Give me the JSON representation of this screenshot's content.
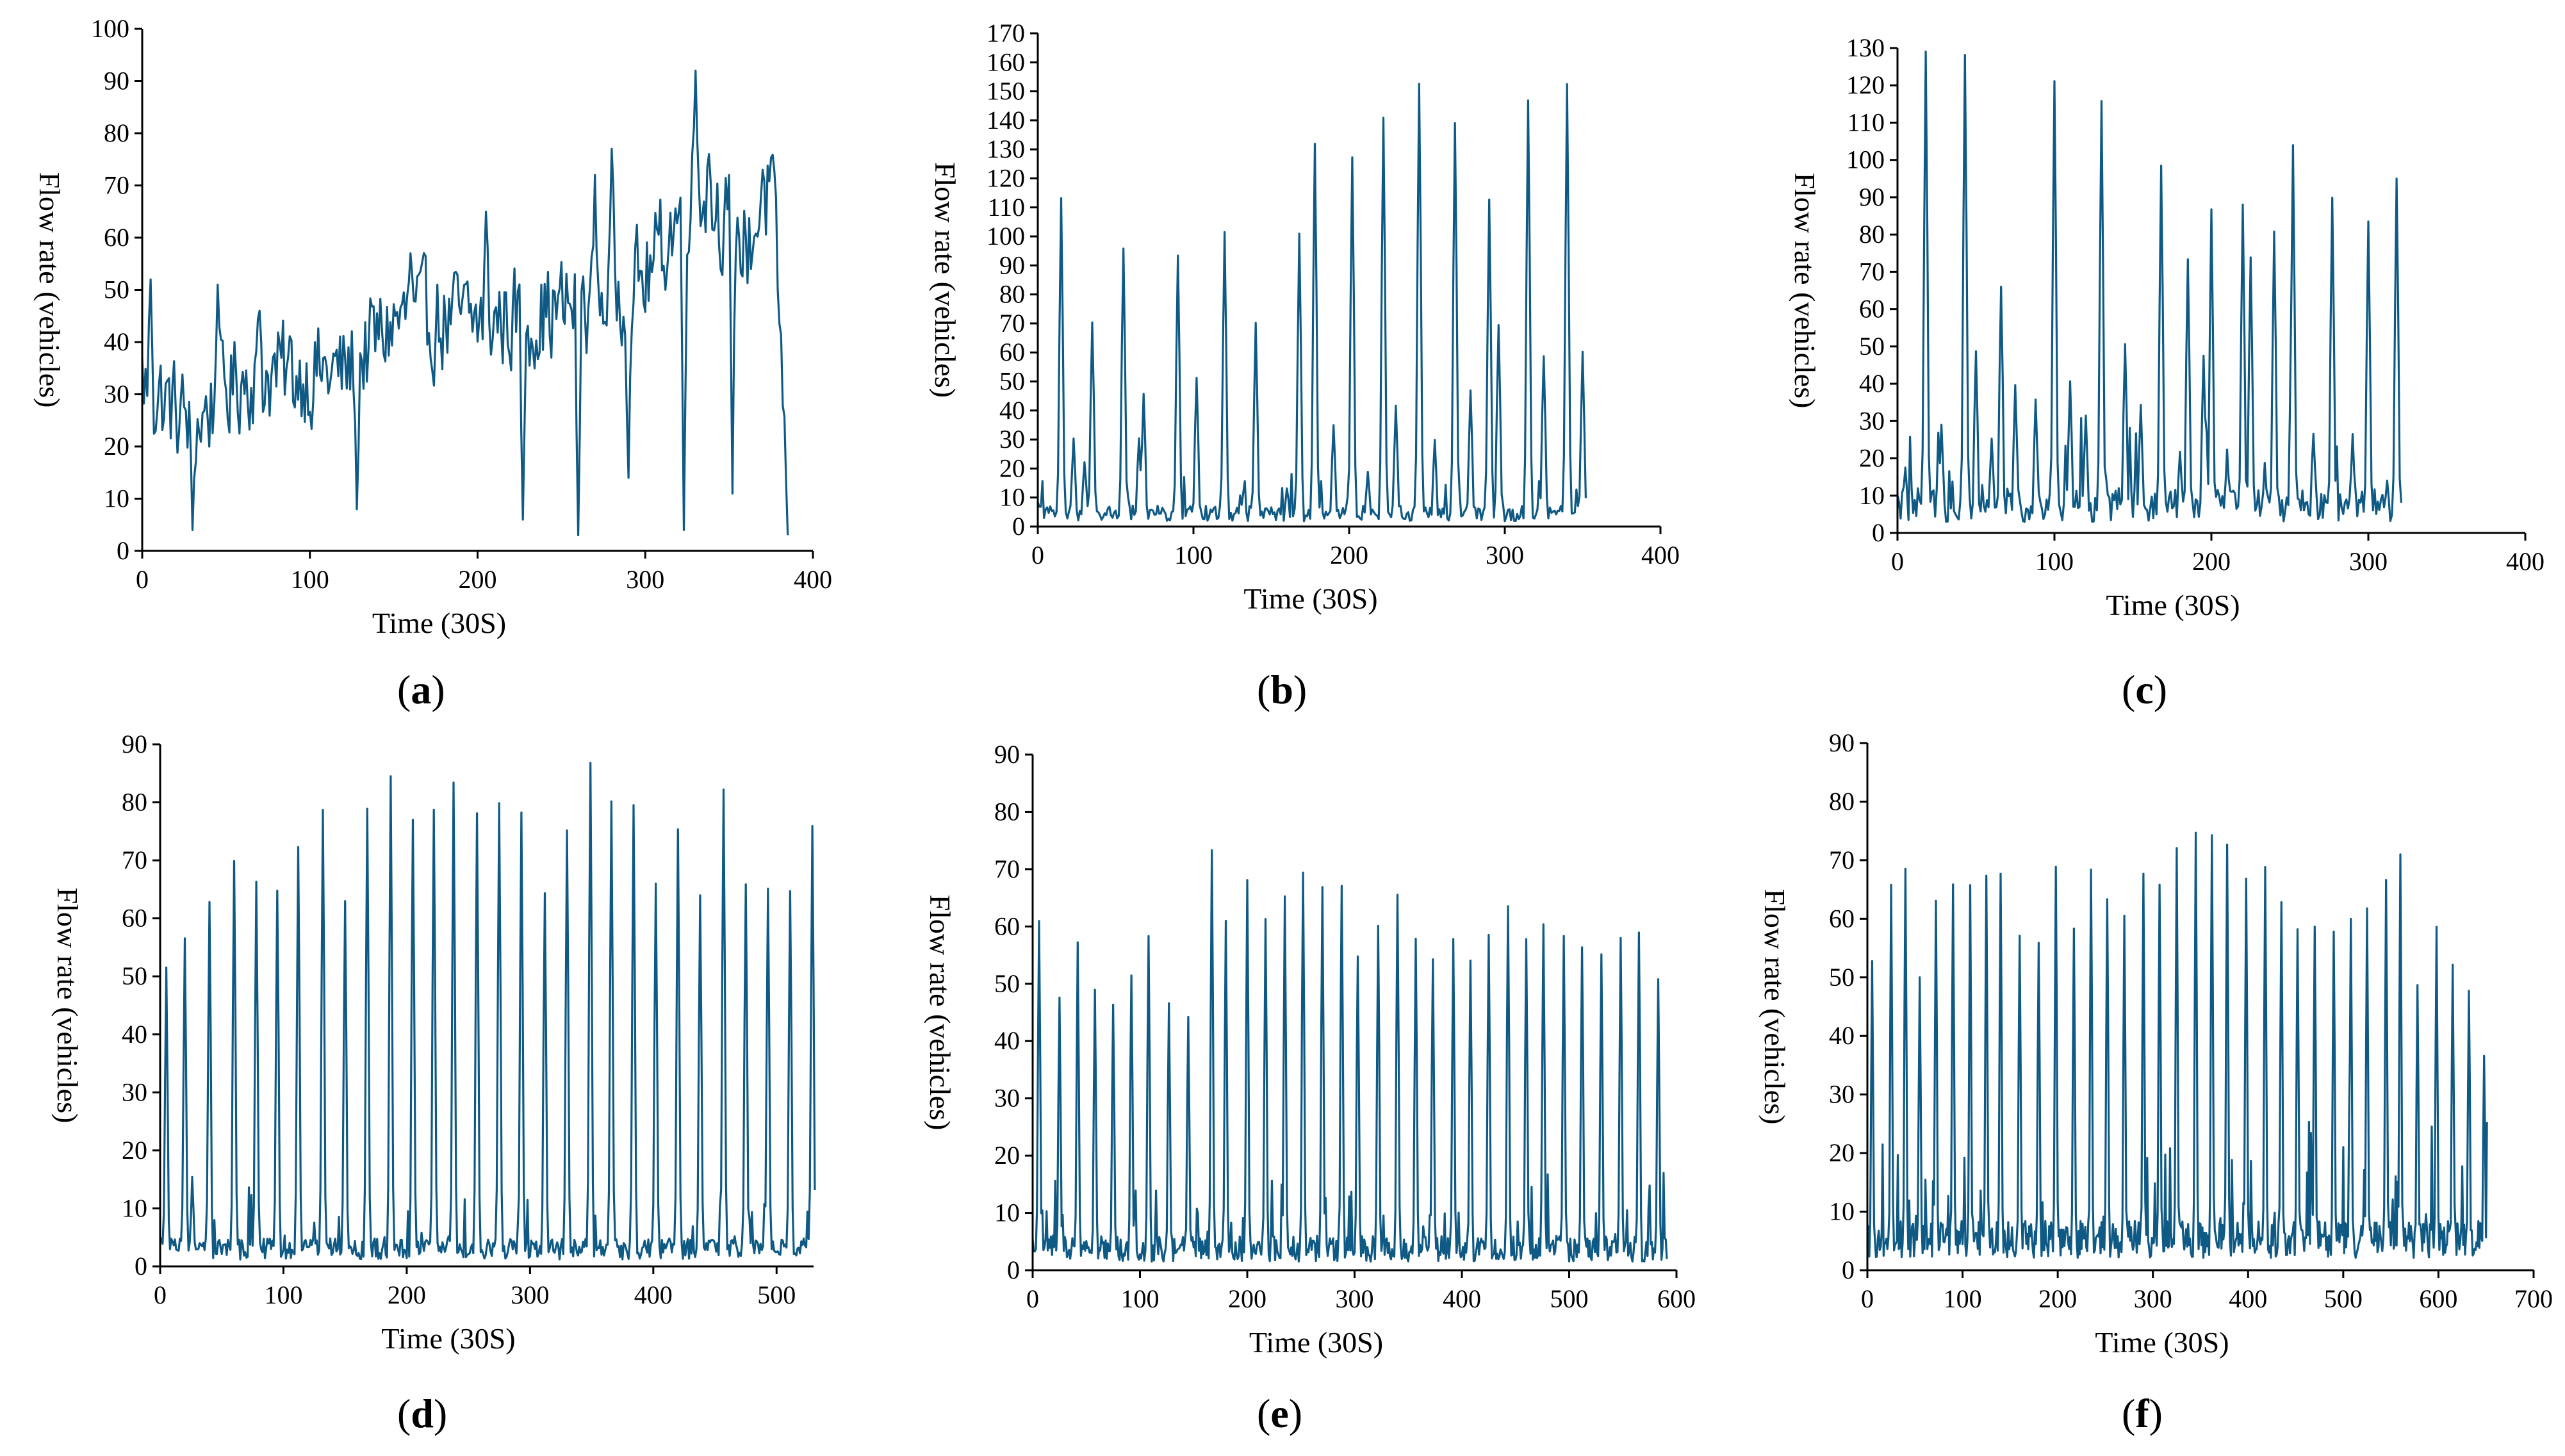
{
  "figure": {
    "line_color": "#0f5a85",
    "axis_color": "#000000"
  },
  "chart_data": [
    {
      "id": "a",
      "label": "a",
      "type": "line",
      "xlabel": "Time (30S)",
      "ylabel": "Flow rate (vehicles)",
      "xlim": [
        0,
        400
      ],
      "ylim": [
        0,
        100
      ],
      "xticks": [
        0,
        100,
        200,
        300,
        400
      ],
      "yticks": [
        0,
        10,
        20,
        30,
        40,
        50,
        60,
        70,
        80,
        90,
        100
      ],
      "n_points": 386,
      "pattern": "noisy",
      "base": 35,
      "noise": 14,
      "trend": [
        [
          0,
          32
        ],
        [
          30,
          24
        ],
        [
          60,
          34
        ],
        [
          120,
          34
        ],
        [
          150,
          44
        ],
        [
          200,
          44
        ],
        [
          250,
          46
        ],
        [
          300,
          52
        ],
        [
          330,
          72
        ],
        [
          360,
          58
        ],
        [
          375,
          70
        ],
        [
          386,
          4
        ]
      ],
      "peaks": [
        [
          5,
          52
        ],
        [
          30,
          4
        ],
        [
          45,
          51
        ],
        [
          70,
          46
        ],
        [
          128,
          8
        ],
        [
          160,
          57
        ],
        [
          205,
          65
        ],
        [
          227,
          6
        ],
        [
          260,
          3
        ],
        [
          270,
          72
        ],
        [
          280,
          77
        ],
        [
          290,
          14
        ],
        [
          323,
          4
        ],
        [
          330,
          92
        ],
        [
          338,
          76
        ],
        [
          350,
          72
        ],
        [
          352,
          11
        ],
        [
          370,
          73
        ],
        [
          385,
          3
        ]
      ]
    },
    {
      "id": "b",
      "label": "b",
      "type": "line",
      "xlabel": "Time (30S)",
      "ylabel": "Flow rate (vehicles)",
      "xlim": [
        0,
        400
      ],
      "ylim": [
        0,
        170
      ],
      "xticks": [
        0,
        100,
        200,
        300,
        400
      ],
      "yticks": [
        0,
        10,
        20,
        30,
        40,
        50,
        60,
        70,
        80,
        90,
        100,
        110,
        120,
        130,
        140,
        150,
        160,
        170
      ],
      "n_points": 353,
      "pattern": "spikes",
      "base": 6,
      "peaks": [
        [
          15,
          113
        ],
        [
          23,
          30
        ],
        [
          30,
          22
        ],
        [
          35,
          71
        ],
        [
          55,
          95
        ],
        [
          65,
          30
        ],
        [
          68,
          46
        ],
        [
          90,
          93
        ],
        [
          102,
          51
        ],
        [
          120,
          101
        ],
        [
          132,
          12
        ],
        [
          140,
          70
        ],
        [
          160,
          14
        ],
        [
          168,
          100
        ],
        [
          178,
          132
        ],
        [
          190,
          34
        ],
        [
          202,
          128
        ],
        [
          212,
          18
        ],
        [
          222,
          140
        ],
        [
          230,
          41
        ],
        [
          245,
          153
        ],
        [
          255,
          30
        ],
        [
          268,
          140
        ],
        [
          278,
          46
        ],
        [
          290,
          113
        ],
        [
          296,
          70
        ],
        [
          315,
          147
        ],
        [
          325,
          58
        ],
        [
          340,
          152
        ],
        [
          350,
          60
        ]
      ]
    },
    {
      "id": "c",
      "label": "c",
      "type": "line",
      "xlabel": "Time (30S)",
      "ylabel": "Flow rate (vehicles)",
      "xlim": [
        0,
        400
      ],
      "ylim": [
        0,
        130
      ],
      "xticks": [
        0,
        100,
        200,
        300,
        400
      ],
      "yticks": [
        0,
        10,
        20,
        30,
        40,
        50,
        60,
        70,
        80,
        90,
        100,
        110,
        120,
        130
      ],
      "n_points": 322,
      "pattern": "spikes",
      "base": 10,
      "peaks": [
        [
          5,
          18
        ],
        [
          18,
          129
        ],
        [
          28,
          29
        ],
        [
          43,
          128
        ],
        [
          50,
          49
        ],
        [
          60,
          25
        ],
        [
          66,
          66
        ],
        [
          75,
          40
        ],
        [
          88,
          35
        ],
        [
          100,
          122
        ],
        [
          110,
          41
        ],
        [
          120,
          32
        ],
        [
          130,
          115
        ],
        [
          145,
          51
        ],
        [
          155,
          34
        ],
        [
          168,
          98
        ],
        [
          180,
          22
        ],
        [
          185,
          73
        ],
        [
          195,
          48
        ],
        [
          200,
          86
        ],
        [
          210,
          22
        ],
        [
          220,
          88
        ],
        [
          225,
          74
        ],
        [
          240,
          80
        ],
        [
          252,
          103
        ],
        [
          265,
          27
        ],
        [
          277,
          89
        ],
        [
          290,
          27
        ],
        [
          300,
          84
        ],
        [
          312,
          14
        ],
        [
          318,
          95
        ]
      ]
    },
    {
      "id": "d",
      "label": "d",
      "type": "line",
      "xlabel": "Time (30S)",
      "ylabel": "Flow rate (vehicles)",
      "xlim": [
        0,
        530
      ],
      "ylim": [
        0,
        90
      ],
      "xticks": [
        0,
        100,
        200,
        300,
        400,
        500
      ],
      "yticks": [
        0,
        10,
        20,
        30,
        40,
        50,
        60,
        70,
        80,
        90
      ],
      "n_points": 532,
      "pattern": "spikes",
      "base": 4,
      "peaks": [
        [
          5,
          51
        ],
        [
          20,
          56
        ],
        [
          26,
          15
        ],
        [
          40,
          62
        ],
        [
          60,
          70
        ],
        [
          78,
          66
        ],
        [
          95,
          65
        ],
        [
          112,
          72
        ],
        [
          132,
          79
        ],
        [
          150,
          63
        ],
        [
          168,
          78
        ],
        [
          187,
          84
        ],
        [
          205,
          77
        ],
        [
          222,
          78
        ],
        [
          238,
          83
        ],
        [
          257,
          78
        ],
        [
          275,
          79
        ],
        [
          293,
          78
        ],
        [
          312,
          65
        ],
        [
          330,
          76
        ],
        [
          349,
          87
        ],
        [
          366,
          80
        ],
        [
          384,
          80
        ],
        [
          402,
          66
        ],
        [
          420,
          76
        ],
        [
          438,
          63
        ],
        [
          457,
          83
        ],
        [
          475,
          66
        ],
        [
          493,
          65
        ],
        [
          511,
          65
        ],
        [
          529,
          76
        ]
      ]
    },
    {
      "id": "e",
      "label": "e",
      "type": "line",
      "xlabel": "Time (30S)",
      "ylabel": "Flow rate (vehicles)",
      "xlim": [
        0,
        600
      ],
      "ylim": [
        0,
        90
      ],
      "xticks": [
        0,
        100,
        200,
        300,
        400,
        500,
        600
      ],
      "yticks": [
        0,
        10,
        20,
        30,
        40,
        50,
        60,
        70,
        80,
        90
      ],
      "n_points": 592,
      "pattern": "spikes",
      "base": 5,
      "peaks": [
        [
          6,
          61
        ],
        [
          25,
          47
        ],
        [
          42,
          57
        ],
        [
          58,
          48
        ],
        [
          75,
          47
        ],
        [
          92,
          52
        ],
        [
          108,
          59
        ],
        [
          127,
          46
        ],
        [
          145,
          45
        ],
        [
          167,
          73
        ],
        [
          180,
          60
        ],
        [
          200,
          68
        ],
        [
          217,
          61
        ],
        [
          235,
          65
        ],
        [
          252,
          70
        ],
        [
          270,
          67
        ],
        [
          288,
          68
        ],
        [
          303,
          54
        ],
        [
          322,
          60
        ],
        [
          340,
          65
        ],
        [
          357,
          58
        ],
        [
          373,
          55
        ],
        [
          392,
          58
        ],
        [
          408,
          54
        ],
        [
          425,
          58
        ],
        [
          443,
          63
        ],
        [
          460,
          57
        ],
        [
          476,
          60
        ],
        [
          495,
          58
        ],
        [
          512,
          57
        ],
        [
          530,
          56
        ],
        [
          548,
          58
        ],
        [
          565,
          58
        ],
        [
          583,
          50
        ]
      ]
    },
    {
      "id": "f",
      "label": "f",
      "type": "line",
      "xlabel": "Time (30S)",
      "ylabel": "Flow rate (vehicles)",
      "xlim": [
        0,
        700
      ],
      "ylim": [
        0,
        90
      ],
      "xticks": [
        0,
        100,
        200,
        300,
        400,
        500,
        600,
        700
      ],
      "yticks": [
        0,
        10,
        20,
        30,
        40,
        50,
        60,
        70,
        80,
        90
      ],
      "n_points": 652,
      "pattern": "spikes",
      "base": 7,
      "peaks": [
        [
          5,
          52
        ],
        [
          25,
          65
        ],
        [
          40,
          69
        ],
        [
          55,
          50
        ],
        [
          72,
          64
        ],
        [
          90,
          66
        ],
        [
          108,
          65
        ],
        [
          125,
          67
        ],
        [
          140,
          67
        ],
        [
          160,
          58
        ],
        [
          180,
          56
        ],
        [
          198,
          68
        ],
        [
          217,
          58
        ],
        [
          235,
          69
        ],
        [
          252,
          64
        ],
        [
          270,
          60
        ],
        [
          290,
          67
        ],
        [
          307,
          66
        ],
        [
          325,
          72
        ],
        [
          345,
          74
        ],
        [
          362,
          75
        ],
        [
          378,
          73
        ],
        [
          398,
          67
        ],
        [
          418,
          69
        ],
        [
          435,
          63
        ],
        [
          452,
          59
        ],
        [
          470,
          59
        ],
        [
          490,
          57
        ],
        [
          508,
          59
        ],
        [
          525,
          61
        ],
        [
          545,
          66
        ],
        [
          560,
          70
        ],
        [
          578,
          49
        ],
        [
          598,
          58
        ],
        [
          615,
          52
        ],
        [
          632,
          48
        ],
        [
          648,
          37
        ]
      ]
    }
  ]
}
